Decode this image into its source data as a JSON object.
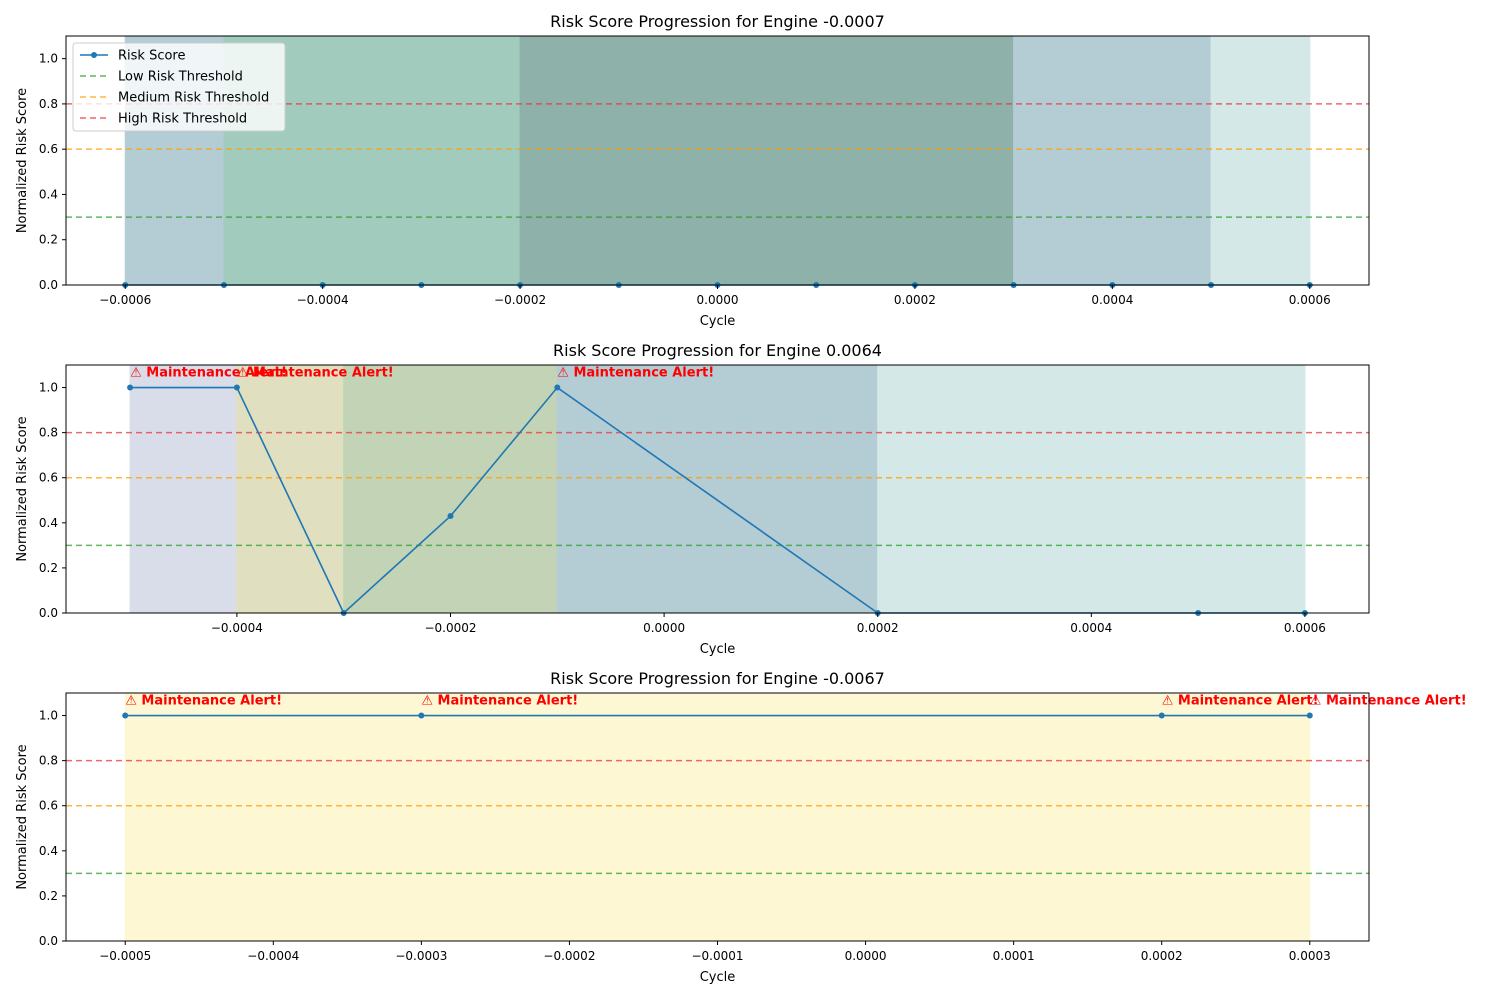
{
  "colors": {
    "line": "#1f77b4",
    "low_threshold": "#2ca02c",
    "medium_threshold": "#ff9f00",
    "high_threshold": "#e8383d",
    "alert": "#ff0000"
  },
  "legend": {
    "placement": "upper-left of first panel",
    "entries": [
      "Risk Score",
      "Low Risk Threshold",
      "Medium Risk Threshold",
      "High Risk Threshold"
    ]
  },
  "alert_label": "⚠ Maintenance Alert!",
  "chart_data": [
    {
      "type": "line",
      "title": "Risk Score Progression for Engine -0.0007",
      "xlabel": "Cycle",
      "ylabel": "Normalized Risk Score",
      "xlim": [
        -0.00066,
        0.00066
      ],
      "ylim": [
        0,
        1.1
      ],
      "x_ticks": [
        -0.0006,
        -0.0004,
        -0.0002,
        0.0,
        0.0002,
        0.0004,
        0.0006
      ],
      "x_tick_labels": [
        "−0.0006",
        "−0.0004",
        "−0.0002",
        "0.0000",
        "0.0002",
        "0.0004",
        "0.0006"
      ],
      "y_ticks": [
        0,
        0.2,
        0.4,
        0.6,
        0.8,
        1.0
      ],
      "y_tick_labels": [
        "0.0",
        "0.2",
        "0.4",
        "0.6",
        "0.8",
        "1.0"
      ],
      "thresholds": [
        0.3,
        0.6,
        0.8
      ],
      "series": [
        {
          "x": [
            -0.0006,
            -0.0005,
            -0.0004,
            -0.0003,
            -0.0002,
            -0.0001,
            0.0,
            0.0001,
            0.0002,
            0.0003,
            0.0004,
            0.0005,
            0.0006
          ],
          "values": [
            0,
            0,
            0,
            0,
            0,
            0,
            0,
            0,
            0,
            0,
            0,
            0,
            0
          ]
        }
      ],
      "regions": [
        {
          "x0": -0.0006,
          "x1": -0.0005,
          "color": "#b4cdd5"
        },
        {
          "x0": -0.0005,
          "x1": -0.0002,
          "color": "#a1cbbd"
        },
        {
          "x0": -0.0002,
          "x1": 0.0003,
          "color": "#8eb2aa"
        },
        {
          "x0": 0.0003,
          "x1": 0.0005,
          "color": "#b4cdd5"
        },
        {
          "x0": 0.0005,
          "x1": 0.0006,
          "color": "#d3e8e7"
        }
      ],
      "alerts": []
    },
    {
      "type": "line",
      "title": "Risk Score Progression for Engine 0.0064",
      "xlabel": "Cycle",
      "ylabel": "Normalized Risk Score",
      "xlim": [
        -0.00056,
        0.00066
      ],
      "ylim": [
        0,
        1.1
      ],
      "x_ticks": [
        -0.0004,
        -0.0002,
        0.0,
        0.0002,
        0.0004,
        0.0006
      ],
      "x_tick_labels": [
        "−0.0004",
        "−0.0002",
        "0.0000",
        "0.0002",
        "0.0004",
        "0.0006"
      ],
      "y_ticks": [
        0,
        0.2,
        0.4,
        0.6,
        0.8,
        1.0
      ],
      "y_tick_labels": [
        "0.0",
        "0.2",
        "0.4",
        "0.6",
        "0.8",
        "1.0"
      ],
      "thresholds": [
        0.3,
        0.6,
        0.8
      ],
      "series": [
        {
          "x": [
            -0.0005,
            -0.0004,
            -0.0003,
            -0.0002,
            -0.0001,
            0.0002,
            0.0005,
            0.0006
          ],
          "values": [
            1.0,
            1.0,
            0.0,
            0.43,
            1.0,
            0.0,
            0.0,
            0.0
          ]
        }
      ],
      "regions": [
        {
          "x0": -0.0005,
          "x1": -0.0004,
          "color": "#d9dde9"
        },
        {
          "x0": -0.0004,
          "x1": -0.0003,
          "color": "#e0dfc0"
        },
        {
          "x0": -0.0003,
          "x1": -0.0001,
          "color": "#c3d4b6"
        },
        {
          "x0": -0.0001,
          "x1": 0.0002,
          "color": "#b4cdd5"
        },
        {
          "x0": 0.0002,
          "x1": 0.0006,
          "color": "#d3e8e7"
        }
      ],
      "alerts": [
        -0.0005,
        -0.0004,
        -0.0001
      ]
    },
    {
      "type": "line",
      "title": "Risk Score Progression for Engine -0.0067",
      "xlabel": "Cycle",
      "ylabel": "Normalized Risk Score",
      "xlim": [
        -0.00054,
        0.00034
      ],
      "ylim": [
        0,
        1.1
      ],
      "x_ticks": [
        -0.0005,
        -0.0004,
        -0.0003,
        -0.0002,
        -0.0001,
        0.0,
        0.0001,
        0.0002,
        0.0003
      ],
      "x_tick_labels": [
        "−0.0005",
        "−0.0004",
        "−0.0003",
        "−0.0002",
        "−0.0001",
        "0.0000",
        "0.0001",
        "0.0002",
        "0.0003"
      ],
      "y_ticks": [
        0,
        0.2,
        0.4,
        0.6,
        0.8,
        1.0
      ],
      "y_tick_labels": [
        "0.0",
        "0.2",
        "0.4",
        "0.6",
        "0.8",
        "1.0"
      ],
      "thresholds": [
        0.3,
        0.6,
        0.8
      ],
      "series": [
        {
          "x": [
            -0.0005,
            -0.0003,
            0.0002,
            0.0003
          ],
          "values": [
            1.0,
            1.0,
            1.0,
            1.0
          ]
        }
      ],
      "regions": [
        {
          "x0": -0.0005,
          "x1": 0.0003,
          "color": "#fdf8d3"
        }
      ],
      "alerts": [
        -0.0005,
        -0.0003,
        0.0002,
        0.0003
      ]
    }
  ]
}
